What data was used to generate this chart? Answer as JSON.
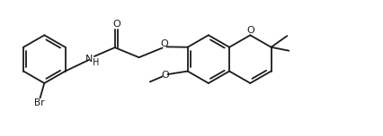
{
  "bg_color": "#ffffff",
  "line_color": "#1a1a1a",
  "lw": 1.3,
  "figsize": [
    4.26,
    1.52
  ],
  "dpi": 100,
  "xlim": [
    0,
    10.8
  ],
  "ylim": [
    0.2,
    4.0
  ]
}
